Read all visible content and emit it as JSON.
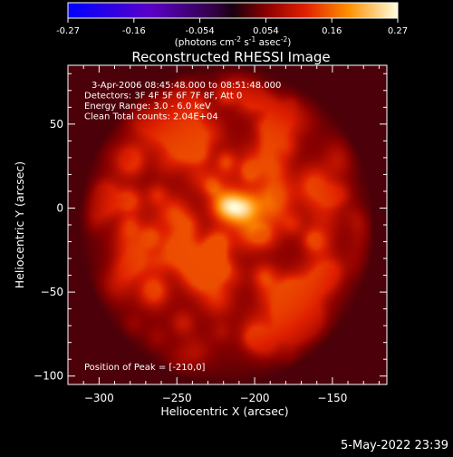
{
  "chart_data": {
    "type": "heatmap",
    "title": "Reconstructed RHESSI Image",
    "xlabel": "Heliocentric X (arcsec)",
    "ylabel": "Heliocentric Y (arcsec)",
    "xlim": [
      -320,
      -115
    ],
    "ylim": [
      -105,
      85
    ],
    "xticks": [
      -300,
      -250,
      -200,
      -150
    ],
    "yticks": [
      50,
      0,
      -50,
      -100
    ],
    "colorbar": {
      "ticks": [
        "-0.27",
        "-0.16",
        "-0.054",
        "0.054",
        "0.16",
        "0.27"
      ],
      "range": [
        -0.27,
        0.27
      ],
      "unit_text": "(photons cm",
      "unit_sup1": "-2",
      "unit_mid": " s",
      "unit_sup2": "-1",
      "unit_end": " asec",
      "unit_sup3": "-2",
      "unit_close": ")"
    },
    "annotations": [
      "3-Apr-2006 08:45:48.000 to 08:51:48.000",
      "Detectors: 3F 4F 5F 6F 7F 8F, Att 0",
      "Energy Range: 3.0 - 6.0 keV",
      "Clean     Total counts: 2.04E+04"
    ],
    "peak_text": "Position of Peak = [-210,0]",
    "peak": {
      "x": -210,
      "y": 0,
      "value": 0.27
    },
    "background_value": 0.03,
    "disk_center": {
      "x": -218,
      "y": -10
    },
    "disk_radius_arcsec": 95
  },
  "timestamp": "5-May-2022 23:39"
}
